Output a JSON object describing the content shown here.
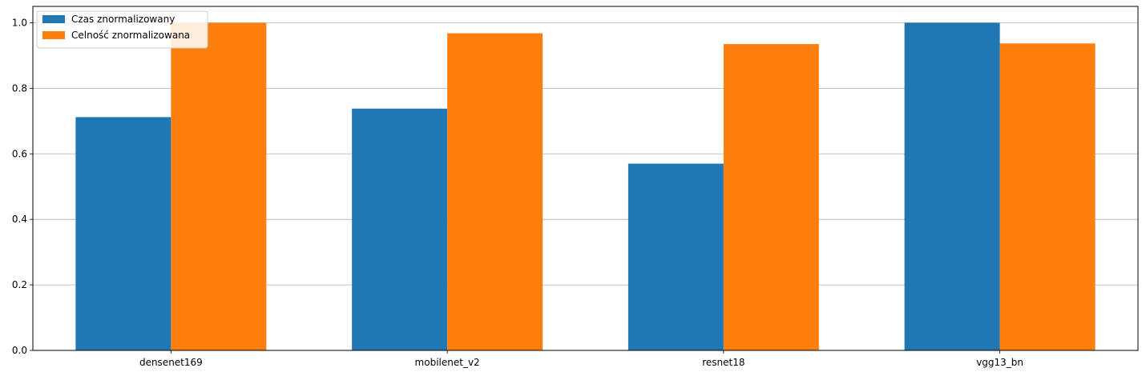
{
  "chart_data": {
    "type": "bar",
    "categories": [
      "densenet169",
      "mobilenet_v2",
      "resnet18",
      "vgg13_bn"
    ],
    "series": [
      {
        "name": "Czas znormalizowany",
        "color": "#1f77b4",
        "values": [
          0.712,
          0.738,
          0.57,
          1.0
        ]
      },
      {
        "name": "Celność znormalizowana",
        "color": "#ff7f0e",
        "values": [
          1.0,
          0.968,
          0.935,
          0.937
        ]
      }
    ],
    "ylim": [
      0,
      1.05
    ],
    "yticks": [
      0.0,
      0.2,
      0.4,
      0.6,
      0.8,
      1.0
    ],
    "ytick_labels": [
      "0.0",
      "0.2",
      "0.4",
      "0.6",
      "0.8",
      "1.0"
    ],
    "grid": "y",
    "legend_placement": "upper-left",
    "title": "",
    "xlabel": "",
    "ylabel": ""
  }
}
